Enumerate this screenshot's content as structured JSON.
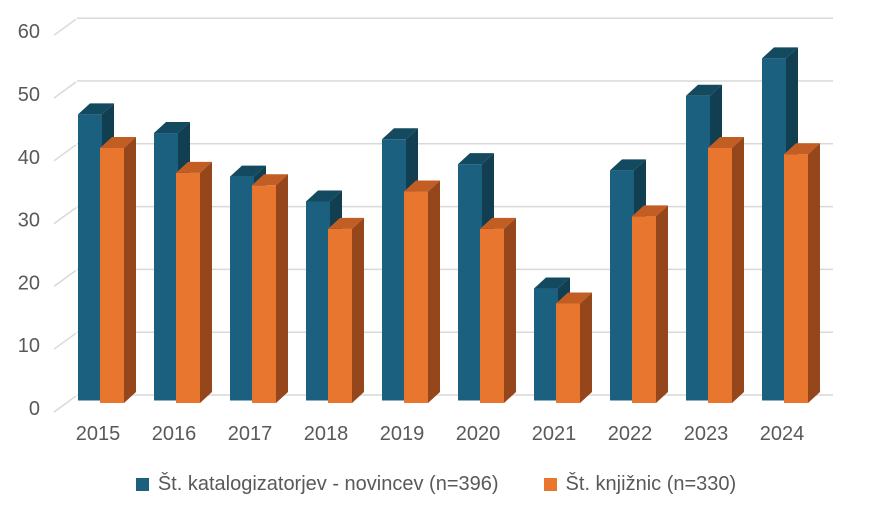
{
  "chart_data": {
    "type": "bar",
    "style": "3d-clustered-column",
    "title": "",
    "xlabel": "",
    "ylabel": "",
    "categories": [
      "2015",
      "2016",
      "2017",
      "2018",
      "2019",
      "2020",
      "2021",
      "2022",
      "2023",
      "2024"
    ],
    "series": [
      {
        "name": "Št. katalogizatorjev - novincev (n=396)",
        "values": [
          46,
          43,
          36,
          32,
          42,
          38,
          18,
          37,
          49,
          55
        ],
        "color_front": "#1B617F",
        "color_top": "#134A60",
        "color_side": "#113E51"
      },
      {
        "name": "Št. knjižnic (n=330)",
        "values": [
          41,
          37,
          35,
          28,
          34,
          28,
          16,
          30,
          41,
          40
        ],
        "color_front": "#E8762F",
        "color_top": "#C25E23",
        "color_side": "#96461B"
      }
    ],
    "ylim": [
      0,
      60
    ],
    "yticks": [
      0,
      10,
      20,
      30,
      40,
      50,
      60
    ],
    "grid": true,
    "legend_position": "bottom"
  },
  "colors": {
    "gridline": "#D9D9D9",
    "axis_text": "#595959",
    "background": "#FFFFFF"
  }
}
